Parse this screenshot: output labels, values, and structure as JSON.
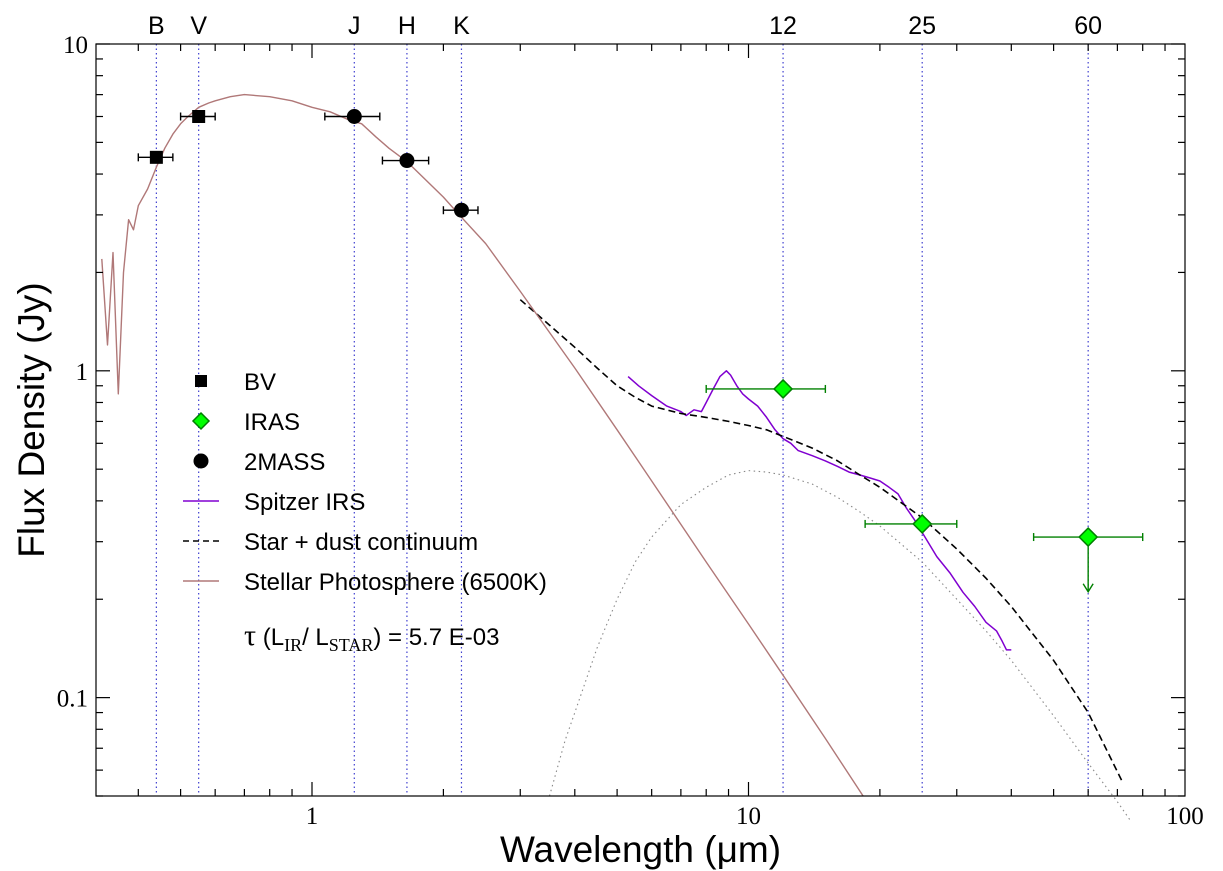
{
  "chart_data": {
    "type": "scatter",
    "xlabel": "Wavelength (μm)",
    "ylabel": "Flux Density (Jy)",
    "x_scale": "log",
    "y_scale": "log",
    "xlim": [
      0.32,
      100
    ],
    "ylim": [
      0.05,
      10
    ],
    "grid": false,
    "legend_position": "left-center",
    "x_tick_labels": [
      {
        "value": 1,
        "label": "1"
      },
      {
        "value": 10,
        "label": "10"
      },
      {
        "value": 100,
        "label": "100"
      }
    ],
    "y_tick_labels": [
      {
        "value": 0.1,
        "label": "0.1"
      },
      {
        "value": 1,
        "label": "1"
      },
      {
        "value": 10,
        "label": "10"
      }
    ],
    "band_markers": [
      {
        "label": "B",
        "wavelength": 0.44
      },
      {
        "label": "V",
        "wavelength": 0.55
      },
      {
        "label": "J",
        "wavelength": 1.25
      },
      {
        "label": "H",
        "wavelength": 1.65
      },
      {
        "label": "K",
        "wavelength": 2.2
      },
      {
        "label": "12",
        "wavelength": 12
      },
      {
        "label": "25",
        "wavelength": 25
      },
      {
        "label": "60",
        "wavelength": 60
      }
    ],
    "legend": [
      {
        "label": "BV",
        "symbol": "square"
      },
      {
        "label": "IRAS",
        "symbol": "diamond"
      },
      {
        "label": "2MASS",
        "symbol": "circle"
      },
      {
        "label": "Spitzer IRS",
        "symbol": "line"
      },
      {
        "label": "Star + dust continuum",
        "symbol": "dashed-line"
      },
      {
        "label": "Stellar Photosphere (6500K)",
        "symbol": "line"
      }
    ],
    "annotation": {
      "tau": "τ",
      "open": " (L",
      "sub1": "IR",
      "mid": "/ L",
      "sub2": "STAR",
      "close": ") = 5.7 E-03"
    },
    "series": [
      {
        "name": "BV",
        "color": "#000000",
        "points": [
          {
            "x": 0.44,
            "y": 4.5,
            "xerr": [
              0.4,
              0.48
            ]
          },
          {
            "x": 0.55,
            "y": 6.0,
            "xerr": [
              0.5,
              0.6
            ]
          }
        ]
      },
      {
        "name": "2MASS",
        "color": "#000000",
        "points": [
          {
            "x": 1.25,
            "y": 6.0,
            "xerr": [
              1.07,
              1.43
            ]
          },
          {
            "x": 1.65,
            "y": 4.4,
            "xerr": [
              1.45,
              1.85
            ]
          },
          {
            "x": 2.2,
            "y": 3.1,
            "xerr": [
              2.0,
              2.4
            ]
          }
        ]
      },
      {
        "name": "IRAS",
        "color": "#00ff00",
        "edge_color": "#008000",
        "points": [
          {
            "x": 12,
            "y": 0.88,
            "xerr": [
              8,
              15
            ],
            "yerr": [
              0.84,
              0.92
            ]
          },
          {
            "x": 25,
            "y": 0.34,
            "xerr": [
              18.5,
              30
            ],
            "yerr": [
              0.32,
              0.36
            ]
          },
          {
            "x": 60,
            "y": 0.31,
            "xerr": [
              45,
              80
            ],
            "upper_limit": true
          }
        ]
      },
      {
        "name": "Spitzer IRS",
        "color": "#8000d0",
        "x": [
          5.3,
          5.6,
          6.0,
          6.5,
          7.0,
          7.2,
          7.5,
          7.8,
          8.0,
          8.3,
          8.6,
          8.9,
          9.1,
          9.4,
          9.7,
          10.0,
          10.5,
          11.0,
          11.5,
          12.0,
          12.5,
          13.0,
          14.0,
          15.0,
          16.0,
          17.0,
          18.0,
          19.0,
          20.0,
          21.0,
          22.0,
          23.0,
          24.0,
          25.0,
          27.0,
          29.0,
          31.0,
          33.0,
          35.0,
          37.0,
          38.0,
          39.0,
          40.0
        ],
        "y": [
          0.96,
          0.9,
          0.84,
          0.78,
          0.75,
          0.73,
          0.76,
          0.75,
          0.8,
          0.88,
          0.96,
          1.0,
          0.97,
          0.9,
          0.85,
          0.82,
          0.78,
          0.72,
          0.66,
          0.62,
          0.6,
          0.57,
          0.55,
          0.53,
          0.51,
          0.49,
          0.48,
          0.47,
          0.46,
          0.44,
          0.42,
          0.38,
          0.35,
          0.32,
          0.27,
          0.24,
          0.21,
          0.19,
          0.17,
          0.16,
          0.15,
          0.14,
          0.14
        ]
      },
      {
        "name": "Star + dust continuum",
        "color": "#000000",
        "x": [
          3.0,
          3.5,
          4.0,
          4.5,
          5.0,
          5.5,
          6.0,
          7.0,
          8.0,
          9.0,
          10.0,
          11.0,
          12.0,
          14.0,
          16.0,
          18.0,
          20.0,
          25.0,
          30.0,
          35.0,
          40.0,
          50.0,
          60.0,
          72.0
        ],
        "y": [
          1.65,
          1.38,
          1.18,
          1.02,
          0.9,
          0.83,
          0.78,
          0.74,
          0.72,
          0.7,
          0.68,
          0.66,
          0.63,
          0.58,
          0.53,
          0.48,
          0.44,
          0.355,
          0.285,
          0.232,
          0.19,
          0.13,
          0.09,
          0.055
        ]
      },
      {
        "name": "Stellar Photosphere (6500K)",
        "color": "#b07878",
        "x": [
          0.33,
          0.34,
          0.35,
          0.36,
          0.37,
          0.38,
          0.39,
          0.4,
          0.42,
          0.44,
          0.46,
          0.48,
          0.5,
          0.52,
          0.55,
          0.58,
          0.6,
          0.65,
          0.7,
          0.8,
          0.9,
          1.0,
          1.1,
          1.2,
          1.3,
          1.4,
          1.5,
          1.6,
          1.7,
          1.8,
          2.0,
          2.2,
          2.5,
          3.0,
          4.0,
          5.0,
          6.0,
          8.0,
          10.0,
          12.0,
          15.0,
          18.3
        ],
        "y": [
          2.2,
          1.2,
          2.3,
          0.85,
          2.0,
          2.9,
          2.7,
          3.2,
          3.6,
          4.2,
          4.8,
          5.3,
          5.7,
          6.0,
          6.4,
          6.6,
          6.7,
          6.9,
          7.0,
          6.9,
          6.7,
          6.4,
          6.2,
          5.9,
          5.7,
          5.2,
          4.8,
          4.5,
          4.2,
          3.9,
          3.4,
          2.95,
          2.45,
          1.75,
          1.02,
          0.66,
          0.46,
          0.26,
          0.168,
          0.117,
          0.075,
          0.05
        ]
      },
      {
        "name": "Dust blackbody",
        "color": "#888888",
        "x": [
          3.5,
          3.8,
          4.0,
          4.5,
          5.0,
          5.5,
          6.0,
          7.0,
          8.0,
          9.0,
          10.0,
          11.0,
          12.0,
          14.0,
          16.0,
          18.0,
          20.0,
          25.0,
          30.0,
          35.0,
          40.0,
          50.0,
          60.0,
          70.0,
          75.0
        ],
        "y": [
          0.05,
          0.074,
          0.09,
          0.142,
          0.2,
          0.26,
          0.31,
          0.39,
          0.44,
          0.48,
          0.495,
          0.49,
          0.48,
          0.45,
          0.41,
          0.37,
          0.335,
          0.26,
          0.2,
          0.16,
          0.13,
          0.088,
          0.063,
          0.048,
          0.042
        ]
      }
    ],
    "colors": {
      "band_line": "#4040d0"
    }
  }
}
